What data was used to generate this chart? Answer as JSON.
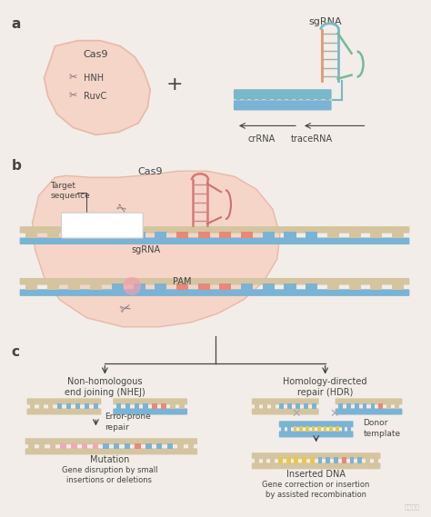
{
  "fig_bg": "#f2ede8",
  "cas9_fill": "#f5d5c8",
  "cas9_edge": "#e8b8a8",
  "dna_blue": "#7ab3d4",
  "dna_tan": "#d4c4a0",
  "dna_red": "#e88878",
  "dna_yellow": "#e8c848",
  "dna_pink": "#f0a8b8",
  "dna_green": "#88c888",
  "sgrna_teal": "#78b8c8",
  "sgrna_orange": "#e89868",
  "sgrna_green": "#78b898",
  "scissors_color": "#777777",
  "text_color": "#444444",
  "arrow_color": "#666666",
  "label_a": "a",
  "label_b": "b",
  "label_c": "c",
  "cas9_text": "Cas9",
  "hnh_text": "HNH",
  "ruvc_text": "RuvC",
  "sgrna_text": "sgRNA",
  "crrna_text": "crRNA",
  "tracerna_text": "traceRNA",
  "pam_text": "PAM",
  "target_seq_text": "Target\nsequence",
  "nhej_text": "Non-homologous\nend joining (NHEJ)",
  "hdr_text": "Homology-directed\nrepair (HDR)",
  "error_prone_text": "Error-prone\nrepair",
  "mutation_text": "Mutation",
  "inserted_dna_text": "Inserted DNA",
  "donor_template_text": "Donor\ntemplate",
  "gene_disruption_text": "Gene disruption by small\ninsertions or deletions",
  "gene_correction_text": "Gene correction or insertion\nby assisted recombination"
}
